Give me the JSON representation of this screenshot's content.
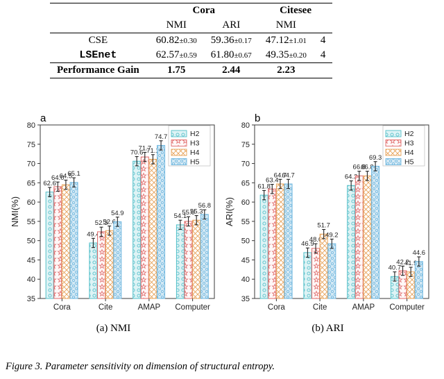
{
  "table": {
    "header_group1": "Cora",
    "header_group2": "Citesee",
    "sub_nmi": "NMI",
    "sub_ari": "ARI",
    "sub_nmi2": "NMI",
    "rows": [
      {
        "name": "CSE",
        "is_mono": false,
        "cora_nmi": "60.82",
        "cora_nmi_pm": "±0.30",
        "cora_ari": "59.36",
        "cora_ari_pm": "±0.17",
        "cite_nmi": "47.12",
        "cite_nmi_pm": "±1.01",
        "tail": "4"
      },
      {
        "name": "LSEnet",
        "is_mono": true,
        "cora_nmi": "62.57",
        "cora_nmi_pm": "±0.59",
        "cora_ari": "61.80",
        "cora_ari_pm": "±0.67",
        "cite_nmi": "49.35",
        "cite_nmi_pm": "±0.20",
        "tail": "4"
      }
    ],
    "gain_label": "Performance Gain",
    "gain": {
      "cora_nmi": "1.75",
      "cora_ari": "2.44",
      "cite_nmi": "2.23"
    }
  },
  "legend_labels": [
    "H2",
    "H3",
    "H4",
    "H5"
  ],
  "series_colors": {
    "H2": {
      "fill": "#def3f5",
      "stroke": "#53bfc9"
    },
    "H3": {
      "fill": "#fef7f7",
      "stroke": "#e06a6a"
    },
    "H4": {
      "fill": "#ffffff",
      "stroke": "#e7a35a"
    },
    "H5": {
      "fill": "#d2e8f4",
      "stroke": "#6fb7df"
    }
  },
  "axis": {
    "font": "Arial, sans-serif",
    "tick_fontsize": 11,
    "label_fontsize": 13,
    "ylim": [
      35,
      80
    ],
    "ystep": 5,
    "grid_color": "#d8d8d8",
    "axis_color": "#3a3a3a",
    "categories": [
      "Cora",
      "Cite",
      "AMAP",
      "Computer"
    ]
  },
  "charts": {
    "nmi": {
      "letter": "a",
      "ylabel": "NMI(%)",
      "subcaption": "(a) NMI",
      "data": {
        "Cora": [
          62.6,
          64.0,
          64.5,
          65.1
        ],
        "Cite": [
          49.4,
          52.3,
          52.6,
          54.9
        ],
        "AMAP": [
          70.6,
          71.7,
          71.1,
          74.7
        ],
        "Computer": [
          54.1,
          55.0,
          55.3,
          56.8
        ]
      },
      "ylabel_extra": {
        "AMAP_3": "71.7"
      }
    },
    "ari": {
      "letter": "b",
      "ylabel": "ARI(%)",
      "subcaption": "(b) ARI",
      "data": {
        "Cora": [
          61.8,
          63.4,
          64.7,
          64.7
        ],
        "Cite": [
          46.9,
          48.0,
          51.7,
          49.2
        ],
        "AMAP": [
          64.3,
          66.8,
          66.8,
          69.3
        ],
        "Computer": [
          40.7,
          42.2,
          41.9,
          44.6
        ]
      }
    }
  },
  "patterns": {
    "H2": "circles",
    "H3": "stars",
    "H4": "diag",
    "H5": "checker"
  },
  "figcaption": "Figure 3. Parameter sensitivity on dimension of structural entropy."
}
